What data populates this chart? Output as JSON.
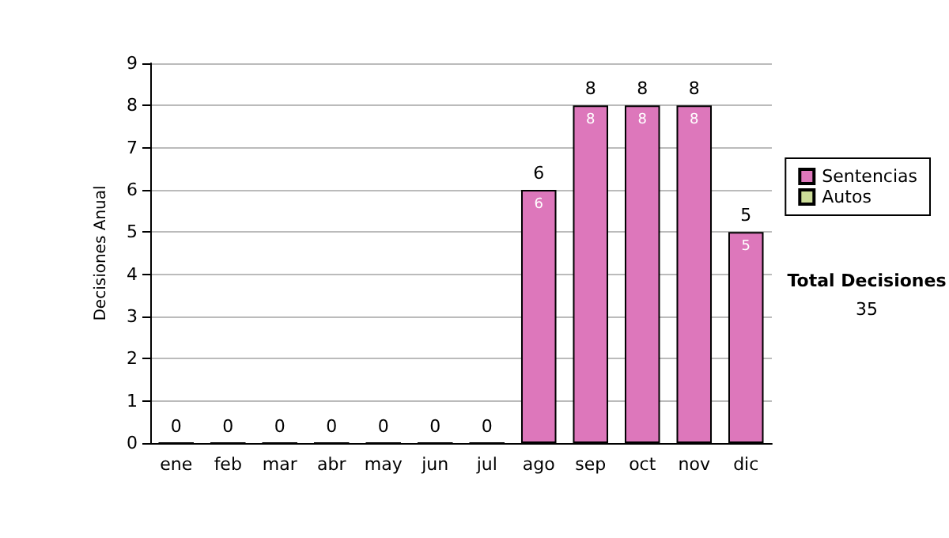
{
  "chart_data": {
    "type": "bar",
    "stacked": true,
    "ylabel": "Decisiones Anual",
    "categories": [
      "ene",
      "feb",
      "mar",
      "abr",
      "may",
      "jun",
      "jul",
      "ago",
      "sep",
      "oct",
      "nov",
      "dic"
    ],
    "series": [
      {
        "name": "Sentencias",
        "color": "#dd77bb",
        "values": [
          0,
          0,
          0,
          0,
          0,
          0,
          0,
          6,
          8,
          8,
          8,
          5
        ],
        "value_labels": [
          null,
          null,
          null,
          null,
          null,
          null,
          null,
          "6",
          "8",
          "8",
          "8",
          "5"
        ]
      },
      {
        "name": "Autos",
        "color": "#ccdd99",
        "values": [
          0,
          0,
          0,
          0,
          0,
          0,
          0,
          0,
          0,
          0,
          0,
          0
        ]
      }
    ],
    "totals": [
      "0",
      "0",
      "0",
      "0",
      "0",
      "0",
      "0",
      "6",
      "8",
      "8",
      "8",
      "5"
    ],
    "ylim": [
      0,
      9
    ],
    "yticks": [
      0,
      1,
      2,
      3,
      4,
      5,
      6,
      7,
      8,
      9
    ],
    "grid": "y",
    "legend": "right",
    "annotations": [
      "Total Decisiones",
      "35"
    ]
  }
}
